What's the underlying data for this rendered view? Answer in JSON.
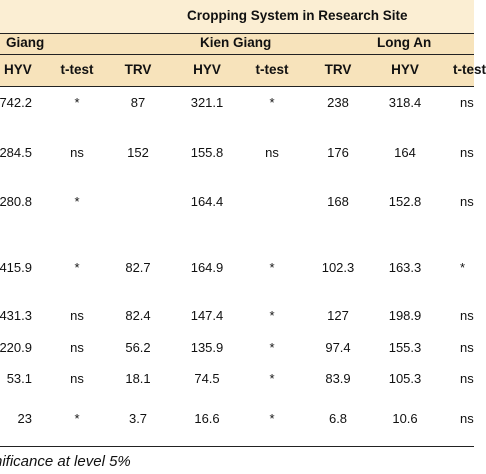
{
  "header": {
    "title": "Cropping System in Research Site",
    "groups": [
      "Giang",
      "Kien Giang",
      "Long An"
    ],
    "columns": [
      "HYV",
      "t-test",
      "TRV",
      "HYV",
      "t-test",
      "TRV",
      "HYV",
      "t-test"
    ]
  },
  "rows": [
    [
      "742.2",
      "*",
      "87",
      "321.1",
      "*",
      "238",
      "318.4",
      "ns"
    ],
    [
      "284.5",
      "ns",
      "152",
      "155.8",
      "ns",
      "176",
      "164",
      "ns"
    ],
    [
      "280.8",
      "*",
      "",
      "164.4",
      "",
      "168",
      "152.8",
      "ns"
    ],
    [
      "415.9",
      "*",
      "82.7",
      "164.9",
      "*",
      "102.3",
      "163.3",
      "*"
    ],
    [
      "431.3",
      "ns",
      "82.4",
      "147.4",
      "*",
      "127",
      "198.9",
      "ns"
    ],
    [
      "220.9",
      "ns",
      "56.2",
      "135.9",
      "*",
      "97.4",
      "155.3",
      "ns"
    ],
    [
      "53.1",
      "ns",
      "18.1",
      "74.5",
      "*",
      "83.9",
      "105.3",
      "ns"
    ],
    [
      "23",
      "*",
      "3.7",
      "16.6",
      "*",
      "6.8",
      "10.6",
      "ns"
    ]
  ],
  "footnote": "nificance at level 5%"
}
